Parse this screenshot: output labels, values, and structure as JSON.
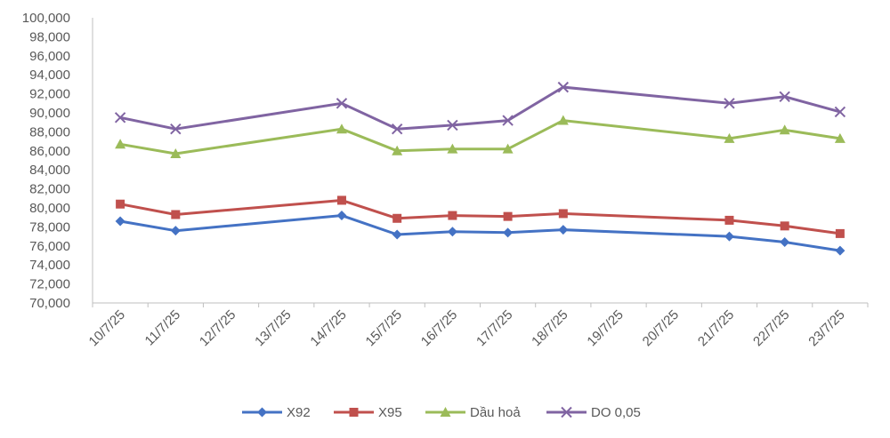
{
  "chart_data": {
    "type": "line",
    "title": "",
    "xlabel": "",
    "ylabel": "",
    "ylim": [
      70000,
      100000
    ],
    "ystep": 2000,
    "grid": false,
    "legend_position": "bottom",
    "categories": [
      "10/7/25",
      "11/7/25",
      "12/7/25",
      "13/7/25",
      "14/7/25",
      "15/7/25",
      "16/7/25",
      "17/7/25",
      "18/7/25",
      "19/7/25",
      "20/7/25",
      "21/7/25",
      "22/7/25",
      "23/7/25"
    ],
    "y_tick_labels": [
      "70,000",
      "72,000",
      "74,000",
      "76,000",
      "78,000",
      "80,000",
      "82,000",
      "84,000",
      "86,000",
      "88,000",
      "90,000",
      "92,000",
      "94,000",
      "96,000",
      "98,000",
      "100,000"
    ],
    "series": [
      {
        "name": "X92",
        "color": "#4472C4",
        "marker": "diamond",
        "values": [
          78600,
          77600,
          null,
          null,
          79200,
          77200,
          77500,
          77400,
          77700,
          null,
          null,
          77000,
          76400,
          75500
        ]
      },
      {
        "name": "X95",
        "color": "#C0504D",
        "marker": "square",
        "values": [
          80400,
          79300,
          null,
          null,
          80800,
          78900,
          79200,
          79100,
          79400,
          null,
          null,
          78700,
          78100,
          77300
        ]
      },
      {
        "name": "Dầu hoả",
        "color": "#9BBB59",
        "marker": "triangle",
        "values": [
          86700,
          85700,
          null,
          null,
          88300,
          86000,
          86200,
          86200,
          89200,
          null,
          null,
          87300,
          88200,
          87300
        ]
      },
      {
        "name": "DO 0,05",
        "color": "#8064A2",
        "marker": "x",
        "values": [
          89500,
          88300,
          null,
          null,
          91000,
          88300,
          88700,
          89200,
          92700,
          null,
          null,
          91000,
          91700,
          90100
        ]
      }
    ]
  }
}
